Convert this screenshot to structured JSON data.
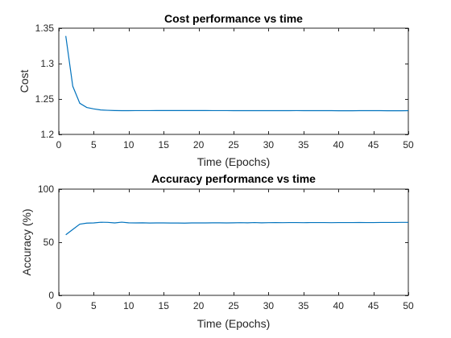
{
  "chart_data": [
    {
      "type": "line",
      "title": "Cost performance vs time",
      "xlabel": "Time (Epochs)",
      "ylabel": "Cost",
      "xlim": [
        0,
        50
      ],
      "ylim": [
        1.2,
        1.35
      ],
      "xticks": [
        0,
        5,
        10,
        15,
        20,
        25,
        30,
        35,
        40,
        45,
        50
      ],
      "xtick_labels": [
        "0",
        "5",
        "10",
        "15",
        "20",
        "25",
        "30",
        "35",
        "40",
        "45",
        "50"
      ],
      "yticks": [
        1.2,
        1.25,
        1.3,
        1.35
      ],
      "ytick_labels": [
        "1.2",
        "1.25",
        "1.3",
        "1.35"
      ],
      "grid": false,
      "color": "#0072BD",
      "x": [
        1,
        2,
        3,
        4,
        5,
        6,
        7,
        8,
        9,
        10,
        11,
        12,
        13,
        14,
        15,
        16,
        17,
        18,
        19,
        20,
        21,
        22,
        23,
        24,
        25,
        26,
        27,
        28,
        29,
        30,
        31,
        32,
        33,
        34,
        35,
        36,
        37,
        38,
        39,
        40,
        41,
        42,
        43,
        44,
        45,
        46,
        47,
        48,
        49,
        50
      ],
      "y": [
        1.339,
        1.268,
        1.244,
        1.238,
        1.236,
        1.2345,
        1.234,
        1.2337,
        1.2335,
        1.2335,
        1.2336,
        1.2336,
        1.2336,
        1.2337,
        1.2337,
        1.2337,
        1.2337,
        1.2337,
        1.2337,
        1.2337,
        1.2337,
        1.2336,
        1.2336,
        1.2336,
        1.2335,
        1.2335,
        1.2335,
        1.2335,
        1.2335,
        1.2335,
        1.2335,
        1.2335,
        1.2335,
        1.2336,
        1.2335,
        1.2335,
        1.2335,
        1.2335,
        1.2335,
        1.2334,
        1.2334,
        1.2334,
        1.2335,
        1.2335,
        1.2335,
        1.2335,
        1.2334,
        1.2334,
        1.2334,
        1.2335
      ]
    },
    {
      "type": "line",
      "title": "Accuracy performance vs time",
      "xlabel": "Time (Epochs)",
      "ylabel": "Accuracy (%)",
      "xlim": [
        0,
        50
      ],
      "ylim": [
        0,
        100
      ],
      "xticks": [
        0,
        5,
        10,
        15,
        20,
        25,
        30,
        35,
        40,
        45,
        50
      ],
      "xtick_labels": [
        "0",
        "5",
        "10",
        "15",
        "20",
        "25",
        "30",
        "35",
        "40",
        "45",
        "50"
      ],
      "yticks": [
        0,
        50,
        100
      ],
      "ytick_labels": [
        "0",
        "50",
        "100"
      ],
      "grid": false,
      "color": "#0072BD",
      "x": [
        1,
        2,
        3,
        4,
        5,
        6,
        7,
        8,
        9,
        10,
        11,
        12,
        13,
        14,
        15,
        16,
        17,
        18,
        19,
        20,
        21,
        22,
        23,
        24,
        25,
        26,
        27,
        28,
        29,
        30,
        31,
        32,
        33,
        34,
        35,
        36,
        37,
        38,
        39,
        40,
        41,
        42,
        43,
        44,
        45,
        46,
        47,
        48,
        49,
        50
      ],
      "y": [
        57,
        62,
        67,
        68,
        68.2,
        68.8,
        68.7,
        68.2,
        68.9,
        68.3,
        68.2,
        68.3,
        68.1,
        68.2,
        68.2,
        68.1,
        68.1,
        68,
        68.2,
        68.2,
        68.2,
        68.3,
        68.3,
        68.2,
        68.3,
        68.4,
        68.3,
        68.5,
        68.3,
        68.4,
        68.5,
        68.4,
        68.5,
        68.5,
        68.4,
        68.5,
        68.5,
        68.5,
        68.4,
        68.5,
        68.5,
        68.5,
        68.6,
        68.5,
        68.5,
        68.6,
        68.6,
        68.6,
        68.7,
        68.7
      ]
    }
  ]
}
